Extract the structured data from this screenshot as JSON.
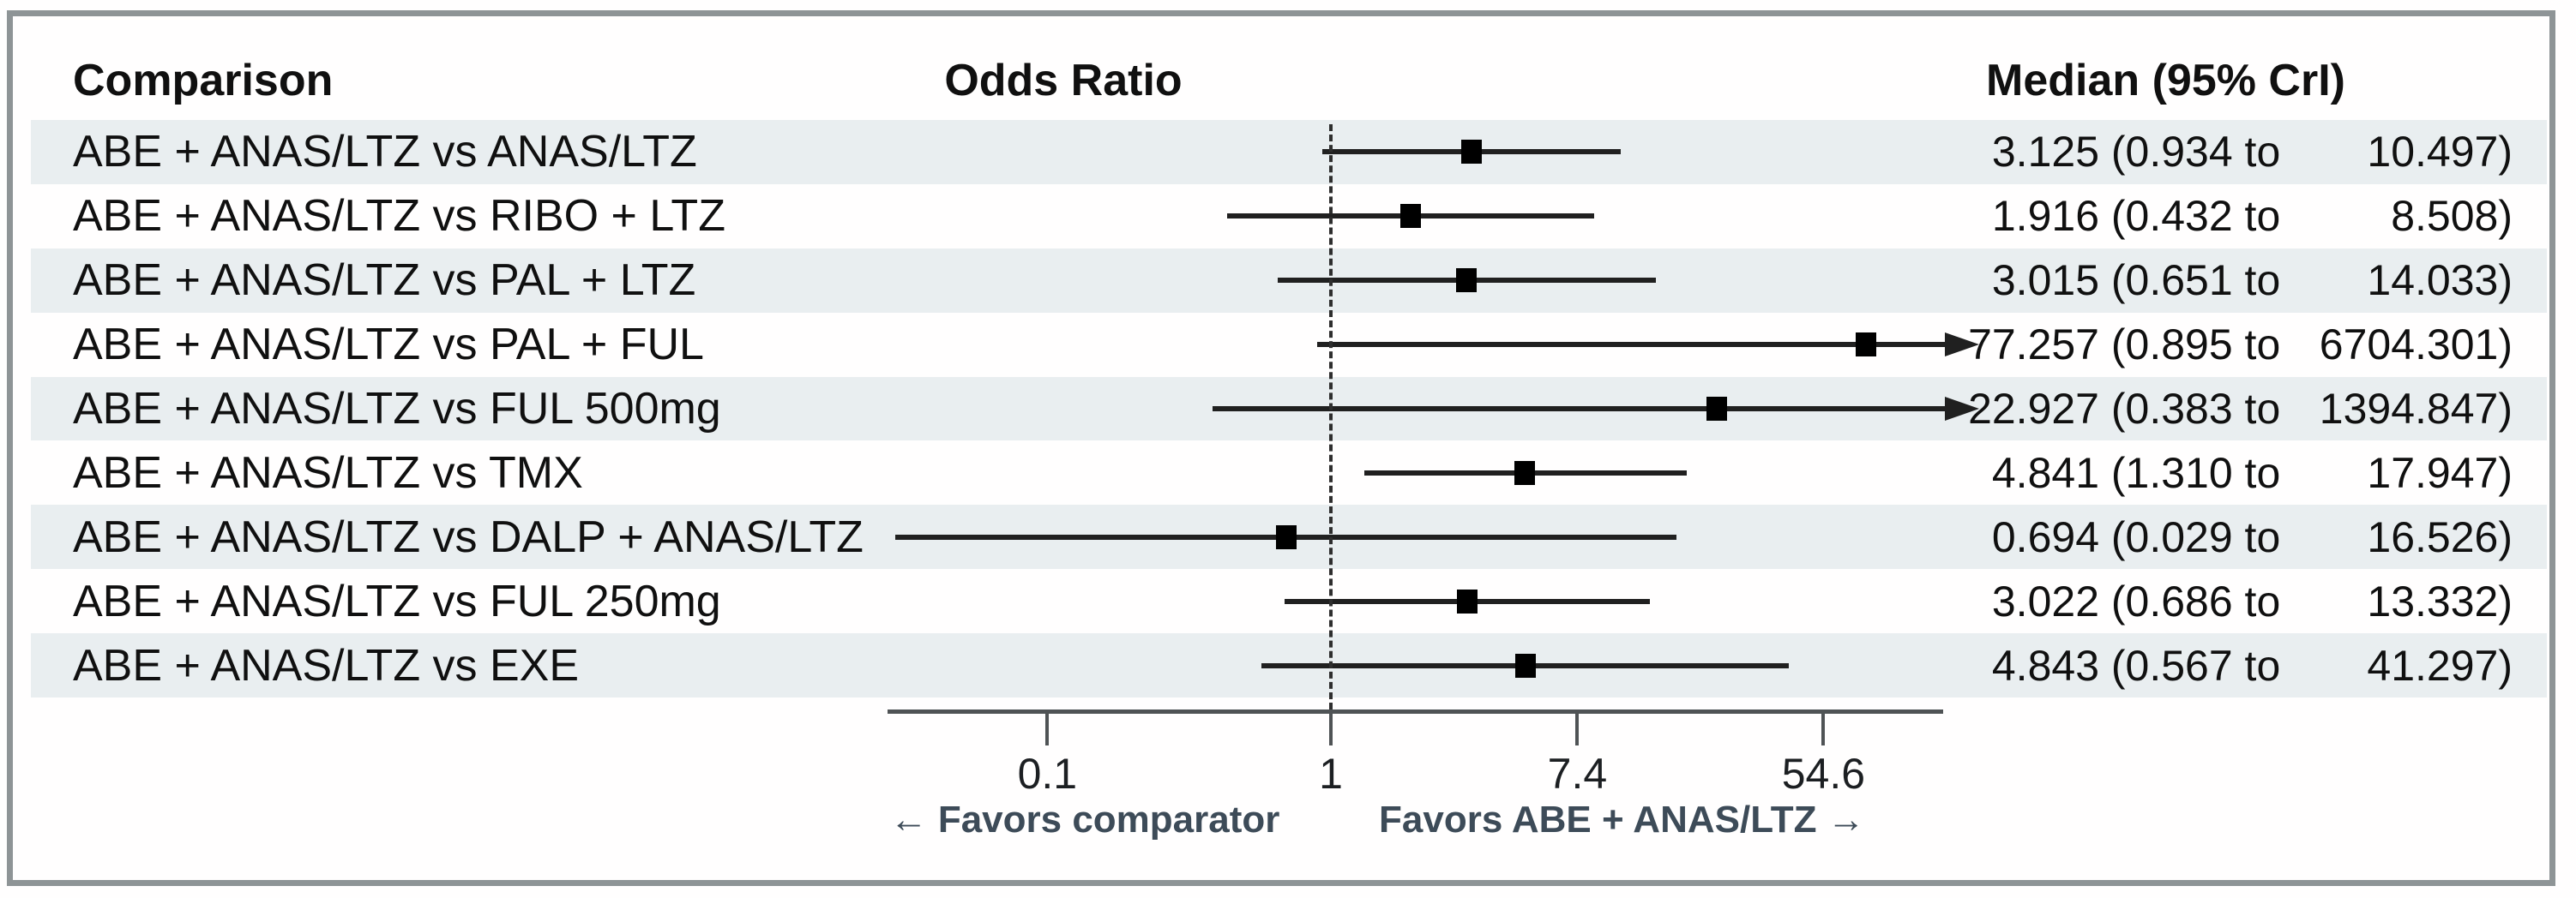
{
  "figure": {
    "headers": {
      "comparison": "Comparison",
      "odds_ratio": "Odds Ratio",
      "median": "Median (95% CrI)"
    },
    "favors_left": "← Favors comparator",
    "favors_right": "Favors ABE + ANAS/LTZ →",
    "colors": {
      "band": "#e9eef0",
      "frame_border": "#8e9496",
      "text": "#101010",
      "favors_text": "#3d4b58",
      "axis": "#4f5355",
      "ci_line": "#202020",
      "marker": "#000000"
    }
  },
  "chart_data": {
    "type": "forest",
    "x_scale": "log",
    "reference_line": 1,
    "x_ticks": [
      0.1,
      1,
      7.4,
      54.6
    ],
    "x_tick_labels": [
      "0.1",
      "1",
      "7.4",
      "54.6"
    ],
    "x_axis_range_approx": [
      0.028,
      145
    ],
    "arrow_clip_value_approx": 145,
    "xlabel_left": "← Favors comparator",
    "xlabel_right": "Favors ABE + ANAS/LTZ →",
    "rows": [
      {
        "comparison": "ABE + ANAS/LTZ vs ANAS/LTZ",
        "median": 3.125,
        "lower": 0.934,
        "upper": 10.497,
        "median_label": "3.125",
        "lower_label": "0.934",
        "upper_label": "10.497",
        "shaded": true,
        "arrow_right": false
      },
      {
        "comparison": "ABE + ANAS/LTZ vs RIBO + LTZ",
        "median": 1.916,
        "lower": 0.432,
        "upper": 8.508,
        "median_label": "1.916",
        "lower_label": "0.432",
        "upper_label": "8.508",
        "shaded": false,
        "arrow_right": false
      },
      {
        "comparison": "ABE + ANAS/LTZ vs PAL + LTZ",
        "median": 3.015,
        "lower": 0.651,
        "upper": 14.033,
        "median_label": "3.015",
        "lower_label": "0.651",
        "upper_label": "14.033",
        "shaded": true,
        "arrow_right": false
      },
      {
        "comparison": "ABE + ANAS/LTZ vs PAL + FUL",
        "median": 77.257,
        "lower": 0.895,
        "upper": 6704.301,
        "median_label": "77.257",
        "lower_label": "0.895",
        "upper_label": "6704.301",
        "shaded": false,
        "arrow_right": true
      },
      {
        "comparison": "ABE + ANAS/LTZ vs FUL 500mg",
        "median": 22.927,
        "lower": 0.383,
        "upper": 1394.847,
        "median_label": "22.927",
        "lower_label": "0.383",
        "upper_label": "1394.847",
        "shaded": true,
        "arrow_right": true
      },
      {
        "comparison": "ABE + ANAS/LTZ vs TMX",
        "median": 4.841,
        "lower": 1.31,
        "upper": 17.947,
        "median_label": "4.841",
        "lower_label": "1.310",
        "upper_label": "17.947",
        "shaded": false,
        "arrow_right": false
      },
      {
        "comparison": "ABE + ANAS/LTZ vs DALP + ANAS/LTZ",
        "median": 0.694,
        "lower": 0.029,
        "upper": 16.526,
        "median_label": "0.694",
        "lower_label": "0.029",
        "upper_label": "16.526",
        "shaded": true,
        "arrow_right": false
      },
      {
        "comparison": "ABE + ANAS/LTZ vs FUL 250mg",
        "median": 3.022,
        "lower": 0.686,
        "upper": 13.332,
        "median_label": "3.022",
        "lower_label": "0.686",
        "upper_label": "13.332",
        "shaded": false,
        "arrow_right": false
      },
      {
        "comparison": "ABE + ANAS/LTZ vs EXE",
        "median": 4.843,
        "lower": 0.567,
        "upper": 41.297,
        "median_label": "4.843",
        "lower_label": "0.567",
        "upper_label": "41.297",
        "shaded": true,
        "arrow_right": false
      }
    ]
  }
}
